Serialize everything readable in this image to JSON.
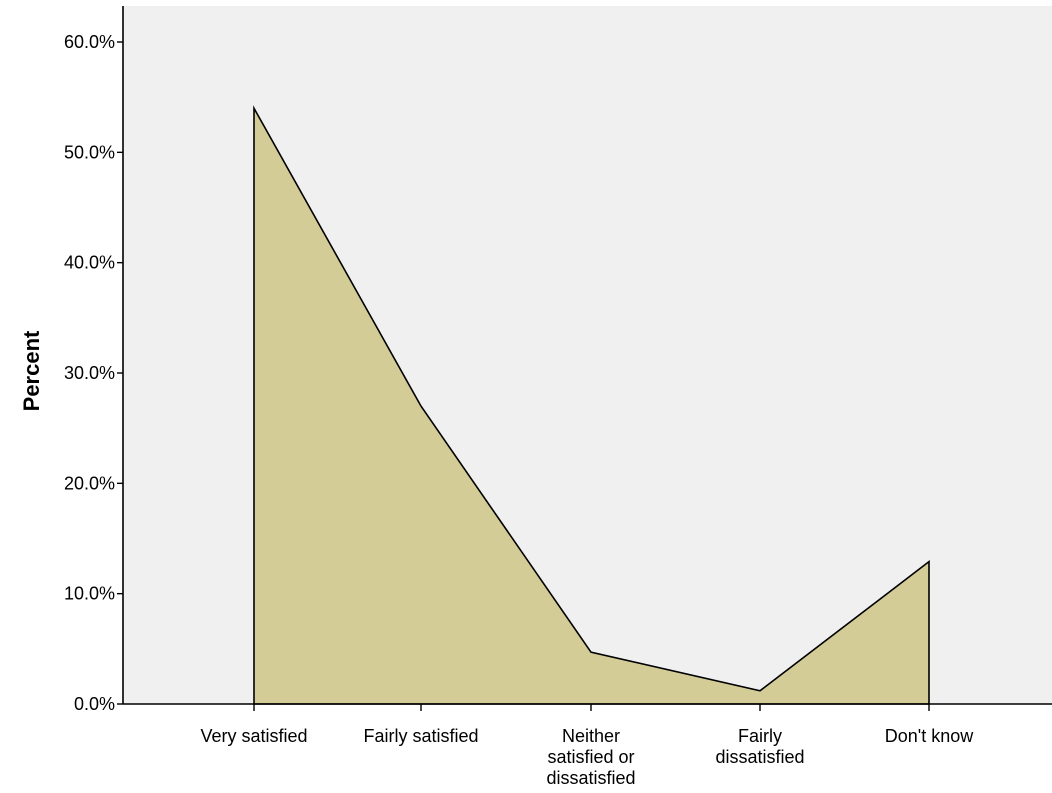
{
  "chart_data": {
    "type": "area",
    "categories": [
      "Very satisfied",
      "Fairly satisfied",
      "Neither satisfied or dissatisfied",
      "Fairly dissatisfied",
      "Don't know"
    ],
    "category_label_lines": [
      [
        "Very satisfied"
      ],
      [
        "Fairly satisfied"
      ],
      [
        "Neither",
        "satisfied or",
        "dissatisfied"
      ],
      [
        "Fairly",
        "dissatisfied"
      ],
      [
        "Don't know"
      ]
    ],
    "values": [
      54.0,
      27.0,
      4.7,
      1.2,
      12.9
    ],
    "ylabel": "Percent",
    "xlabel": "",
    "ylim": [
      0,
      60
    ],
    "yticks": [
      "0.0%",
      "10.0%",
      "20.0%",
      "30.0%",
      "40.0%",
      "50.0%",
      "60.0%"
    ],
    "grid": false,
    "legend": "none",
    "colors": {
      "fill": "#d4cc96",
      "line": "#000000",
      "plot_background": "#f0f0f0",
      "axis": "#000000"
    }
  }
}
